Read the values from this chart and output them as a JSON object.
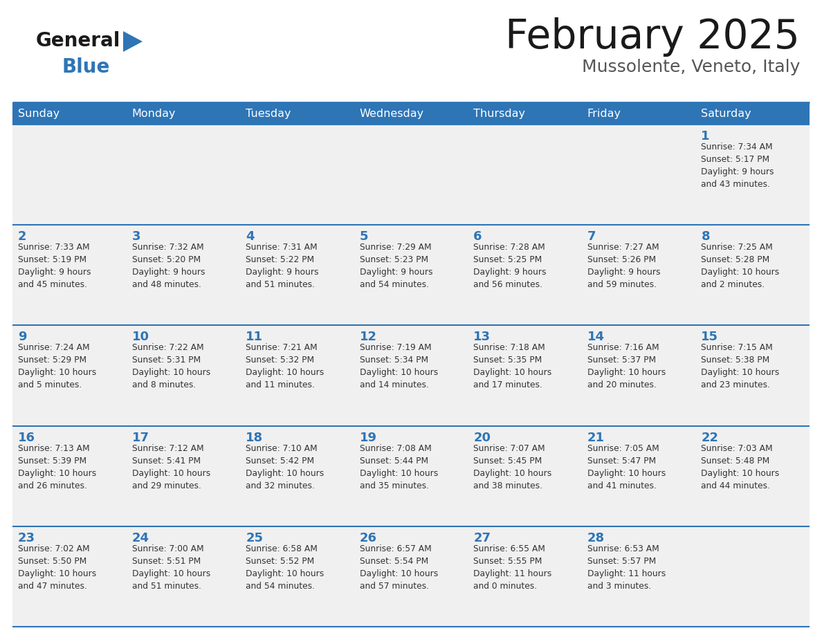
{
  "title": "February 2025",
  "subtitle": "Mussolente, Veneto, Italy",
  "header_bg": "#2E75B6",
  "header_text_color": "#FFFFFF",
  "cell_bg": "#F2F2F2",
  "day_number_color": "#2E75B6",
  "text_color": "#404040",
  "line_color": "#2E75B6",
  "days_of_week": [
    "Sunday",
    "Monday",
    "Tuesday",
    "Wednesday",
    "Thursday",
    "Friday",
    "Saturday"
  ],
  "weeks": [
    [
      {
        "day": null,
        "info": null
      },
      {
        "day": null,
        "info": null
      },
      {
        "day": null,
        "info": null
      },
      {
        "day": null,
        "info": null
      },
      {
        "day": null,
        "info": null
      },
      {
        "day": null,
        "info": null
      },
      {
        "day": "1",
        "info": "Sunrise: 7:34 AM\nSunset: 5:17 PM\nDaylight: 9 hours\nand 43 minutes."
      }
    ],
    [
      {
        "day": "2",
        "info": "Sunrise: 7:33 AM\nSunset: 5:19 PM\nDaylight: 9 hours\nand 45 minutes."
      },
      {
        "day": "3",
        "info": "Sunrise: 7:32 AM\nSunset: 5:20 PM\nDaylight: 9 hours\nand 48 minutes."
      },
      {
        "day": "4",
        "info": "Sunrise: 7:31 AM\nSunset: 5:22 PM\nDaylight: 9 hours\nand 51 minutes."
      },
      {
        "day": "5",
        "info": "Sunrise: 7:29 AM\nSunset: 5:23 PM\nDaylight: 9 hours\nand 54 minutes."
      },
      {
        "day": "6",
        "info": "Sunrise: 7:28 AM\nSunset: 5:25 PM\nDaylight: 9 hours\nand 56 minutes."
      },
      {
        "day": "7",
        "info": "Sunrise: 7:27 AM\nSunset: 5:26 PM\nDaylight: 9 hours\nand 59 minutes."
      },
      {
        "day": "8",
        "info": "Sunrise: 7:25 AM\nSunset: 5:28 PM\nDaylight: 10 hours\nand 2 minutes."
      }
    ],
    [
      {
        "day": "9",
        "info": "Sunrise: 7:24 AM\nSunset: 5:29 PM\nDaylight: 10 hours\nand 5 minutes."
      },
      {
        "day": "10",
        "info": "Sunrise: 7:22 AM\nSunset: 5:31 PM\nDaylight: 10 hours\nand 8 minutes."
      },
      {
        "day": "11",
        "info": "Sunrise: 7:21 AM\nSunset: 5:32 PM\nDaylight: 10 hours\nand 11 minutes."
      },
      {
        "day": "12",
        "info": "Sunrise: 7:19 AM\nSunset: 5:34 PM\nDaylight: 10 hours\nand 14 minutes."
      },
      {
        "day": "13",
        "info": "Sunrise: 7:18 AM\nSunset: 5:35 PM\nDaylight: 10 hours\nand 17 minutes."
      },
      {
        "day": "14",
        "info": "Sunrise: 7:16 AM\nSunset: 5:37 PM\nDaylight: 10 hours\nand 20 minutes."
      },
      {
        "day": "15",
        "info": "Sunrise: 7:15 AM\nSunset: 5:38 PM\nDaylight: 10 hours\nand 23 minutes."
      }
    ],
    [
      {
        "day": "16",
        "info": "Sunrise: 7:13 AM\nSunset: 5:39 PM\nDaylight: 10 hours\nand 26 minutes."
      },
      {
        "day": "17",
        "info": "Sunrise: 7:12 AM\nSunset: 5:41 PM\nDaylight: 10 hours\nand 29 minutes."
      },
      {
        "day": "18",
        "info": "Sunrise: 7:10 AM\nSunset: 5:42 PM\nDaylight: 10 hours\nand 32 minutes."
      },
      {
        "day": "19",
        "info": "Sunrise: 7:08 AM\nSunset: 5:44 PM\nDaylight: 10 hours\nand 35 minutes."
      },
      {
        "day": "20",
        "info": "Sunrise: 7:07 AM\nSunset: 5:45 PM\nDaylight: 10 hours\nand 38 minutes."
      },
      {
        "day": "21",
        "info": "Sunrise: 7:05 AM\nSunset: 5:47 PM\nDaylight: 10 hours\nand 41 minutes."
      },
      {
        "day": "22",
        "info": "Sunrise: 7:03 AM\nSunset: 5:48 PM\nDaylight: 10 hours\nand 44 minutes."
      }
    ],
    [
      {
        "day": "23",
        "info": "Sunrise: 7:02 AM\nSunset: 5:50 PM\nDaylight: 10 hours\nand 47 minutes."
      },
      {
        "day": "24",
        "info": "Sunrise: 7:00 AM\nSunset: 5:51 PM\nDaylight: 10 hours\nand 51 minutes."
      },
      {
        "day": "25",
        "info": "Sunrise: 6:58 AM\nSunset: 5:52 PM\nDaylight: 10 hours\nand 54 minutes."
      },
      {
        "day": "26",
        "info": "Sunrise: 6:57 AM\nSunset: 5:54 PM\nDaylight: 10 hours\nand 57 minutes."
      },
      {
        "day": "27",
        "info": "Sunrise: 6:55 AM\nSunset: 5:55 PM\nDaylight: 11 hours\nand 0 minutes."
      },
      {
        "day": "28",
        "info": "Sunrise: 6:53 AM\nSunset: 5:57 PM\nDaylight: 11 hours\nand 3 minutes."
      },
      {
        "day": null,
        "info": null
      }
    ]
  ]
}
